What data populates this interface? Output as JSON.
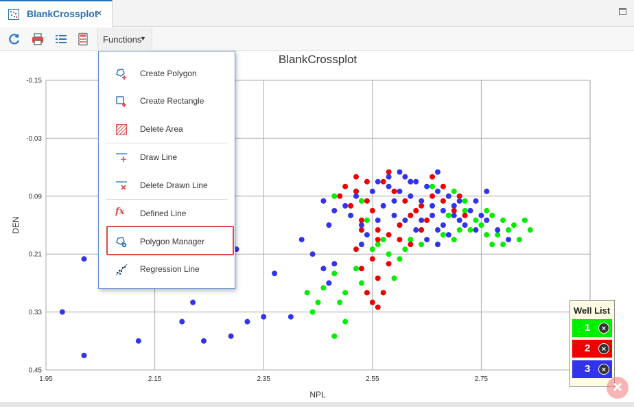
{
  "tab": {
    "title": "BlankCrossplot",
    "close_glyph": "×"
  },
  "toolbar": {
    "icons": [
      "refresh-icon",
      "print-icon",
      "list-icon",
      "calculator-icon"
    ],
    "functions_label": "Functions",
    "functions_caret": "▼"
  },
  "menu": {
    "items": [
      {
        "label": "Create Polygon",
        "icon": "create-polygon-icon"
      },
      {
        "label": "Create Rectangle",
        "icon": "create-rectangle-icon"
      },
      {
        "label": "Delete Area",
        "icon": "delete-area-icon"
      },
      {
        "label": "Draw Line",
        "icon": "draw-line-icon"
      },
      {
        "label": "Delete Drawn Line",
        "icon": "delete-drawn-line-icon"
      },
      {
        "label": "Defined Line",
        "icon": "defined-line-icon",
        "icon_text": "fx"
      },
      {
        "label": "Polygon Manager",
        "icon": "polygon-manager-icon",
        "highlighted": true
      },
      {
        "label": "Regression Line",
        "icon": "regression-line-icon"
      }
    ]
  },
  "well_list": {
    "title": "Well List",
    "wells": [
      {
        "label": "1",
        "color": "#00ee00"
      },
      {
        "label": "2",
        "color": "#ee0000"
      },
      {
        "label": "3",
        "color": "#3333ee"
      }
    ],
    "remove_glyph": "×"
  },
  "floating_close": "×",
  "chart_data": {
    "type": "scatter",
    "title": "BlankCrossplot",
    "xlabel": "NPL",
    "ylabel": "DEN",
    "xlim": [
      1.95,
      2.95
    ],
    "ylim": [
      -0.15,
      0.45
    ],
    "y_inverted": true,
    "grid": true,
    "xticks": [
      "1.95",
      "2.15",
      "2.35",
      "2.55",
      "2.75"
    ],
    "yticks": [
      "-0.15",
      "-0.03",
      "0.09",
      "0.21",
      "0.33",
      "0.45"
    ],
    "series": [
      {
        "name": "1",
        "color": "#00ee00",
        "points": [
          [
            2.44,
            0.33
          ],
          [
            2.45,
            0.31
          ],
          [
            2.43,
            0.29
          ],
          [
            2.47,
            0.27
          ],
          [
            2.48,
            0.25
          ],
          [
            2.49,
            0.31
          ],
          [
            2.5,
            0.35
          ],
          [
            2.48,
            0.38
          ],
          [
            2.52,
            0.24
          ],
          [
            2.55,
            0.2
          ],
          [
            2.57,
            0.18
          ],
          [
            2.6,
            0.15
          ],
          [
            2.62,
            0.18
          ],
          [
            2.67,
            0.19
          ],
          [
            2.7,
            0.18
          ],
          [
            2.73,
            0.16
          ],
          [
            2.75,
            0.15
          ],
          [
            2.78,
            0.17
          ],
          [
            2.8,
            0.16
          ],
          [
            2.82,
            0.18
          ],
          [
            2.81,
            0.15
          ],
          [
            2.79,
            0.14
          ],
          [
            2.76,
            0.12
          ],
          [
            2.72,
            0.1
          ],
          [
            2.7,
            0.08
          ],
          [
            2.66,
            0.07
          ],
          [
            2.62,
            0.06
          ],
          [
            2.58,
            0.05
          ],
          [
            2.53,
            0.1
          ],
          [
            2.51,
            0.13
          ],
          [
            2.54,
            0.14
          ],
          [
            2.56,
            0.19
          ],
          [
            2.58,
            0.21
          ],
          [
            2.61,
            0.2
          ],
          [
            2.64,
            0.19
          ],
          [
            2.68,
            0.17
          ],
          [
            2.71,
            0.16
          ],
          [
            2.74,
            0.14
          ],
          [
            2.77,
            0.13
          ],
          [
            2.59,
            0.26
          ],
          [
            2.48,
            0.09
          ],
          [
            2.52,
            0.08
          ],
          [
            2.77,
            0.19
          ],
          [
            2.83,
            0.14
          ],
          [
            2.84,
            0.16
          ],
          [
            2.46,
            0.28
          ],
          [
            2.5,
            0.29
          ],
          [
            2.53,
            0.27
          ],
          [
            2.64,
            0.16
          ],
          [
            2.69,
            0.13
          ],
          [
            2.72,
            0.12
          ],
          [
            2.76,
            0.17
          ],
          [
            2.79,
            0.19
          ],
          [
            2.6,
            0.22
          ]
        ]
      },
      {
        "name": "2",
        "color": "#ee0000",
        "points": [
          [
            2.5,
            0.07
          ],
          [
            2.52,
            0.08
          ],
          [
            2.54,
            0.1
          ],
          [
            2.55,
            0.12
          ],
          [
            2.53,
            0.14
          ],
          [
            2.56,
            0.16
          ],
          [
            2.58,
            0.17
          ],
          [
            2.6,
            0.15
          ],
          [
            2.62,
            0.13
          ],
          [
            2.64,
            0.11
          ],
          [
            2.66,
            0.09
          ],
          [
            2.68,
            0.1
          ],
          [
            2.7,
            0.12
          ],
          [
            2.57,
            0.06
          ],
          [
            2.59,
            0.08
          ],
          [
            2.61,
            0.1
          ],
          [
            2.63,
            0.12
          ],
          [
            2.65,
            0.14
          ],
          [
            2.55,
            0.22
          ],
          [
            2.56,
            0.26
          ],
          [
            2.57,
            0.29
          ],
          [
            2.55,
            0.31
          ],
          [
            2.56,
            0.32
          ],
          [
            2.54,
            0.29
          ],
          [
            2.53,
            0.24
          ],
          [
            2.58,
            0.23
          ],
          [
            2.51,
            0.11
          ],
          [
            2.49,
            0.09
          ],
          [
            2.52,
            0.05
          ],
          [
            2.54,
            0.06
          ],
          [
            2.58,
            0.04
          ],
          [
            2.62,
            0.06
          ],
          [
            2.66,
            0.05
          ],
          [
            2.68,
            0.07
          ],
          [
            2.71,
            0.09
          ],
          [
            2.72,
            0.13
          ],
          [
            2.56,
            0.18
          ],
          [
            2.6,
            0.18
          ],
          [
            2.62,
            0.19
          ],
          [
            2.64,
            0.16
          ],
          [
            2.53,
            0.16
          ],
          [
            2.52,
            0.2
          ]
        ]
      },
      {
        "name": "3",
        "color": "#3333ee",
        "points": [
          [
            1.98,
            0.33
          ],
          [
            2.02,
            0.22
          ],
          [
            2.02,
            0.42
          ],
          [
            2.12,
            0.39
          ],
          [
            2.2,
            0.35
          ],
          [
            2.22,
            0.31
          ],
          [
            2.24,
            0.39
          ],
          [
            2.29,
            0.38
          ],
          [
            2.3,
            0.2
          ],
          [
            2.32,
            0.35
          ],
          [
            2.35,
            0.34
          ],
          [
            2.37,
            0.25
          ],
          [
            2.4,
            0.34
          ],
          [
            2.42,
            0.18
          ],
          [
            2.44,
            0.21
          ],
          [
            2.46,
            0.24
          ],
          [
            2.47,
            0.27
          ],
          [
            2.48,
            0.23
          ],
          [
            2.5,
            0.11
          ],
          [
            2.51,
            0.13
          ],
          [
            2.53,
            0.15
          ],
          [
            2.54,
            0.17
          ],
          [
            2.56,
            0.06
          ],
          [
            2.58,
            0.07
          ],
          [
            2.6,
            0.08
          ],
          [
            2.62,
            0.09
          ],
          [
            2.64,
            0.1
          ],
          [
            2.66,
            0.11
          ],
          [
            2.68,
            0.12
          ],
          [
            2.7,
            0.13
          ],
          [
            2.72,
            0.15
          ],
          [
            2.74,
            0.16
          ],
          [
            2.76,
            0.14
          ],
          [
            2.78,
            0.16
          ],
          [
            2.8,
            0.18
          ],
          [
            2.61,
            0.05
          ],
          [
            2.63,
            0.06
          ],
          [
            2.65,
            0.07
          ],
          [
            2.67,
            0.08
          ],
          [
            2.69,
            0.09
          ],
          [
            2.71,
            0.1
          ],
          [
            2.57,
            0.11
          ],
          [
            2.59,
            0.13
          ],
          [
            2.61,
            0.14
          ],
          [
            2.63,
            0.16
          ],
          [
            2.65,
            0.18
          ],
          [
            2.67,
            0.19
          ],
          [
            2.69,
            0.17
          ],
          [
            2.46,
            0.1
          ],
          [
            2.48,
            0.12
          ],
          [
            2.52,
            0.09
          ],
          [
            2.55,
            0.08
          ],
          [
            2.58,
            0.05
          ],
          [
            2.6,
            0.04
          ],
          [
            2.62,
            0.06
          ],
          [
            2.66,
            0.13
          ],
          [
            2.68,
            0.15
          ],
          [
            2.7,
            0.11
          ],
          [
            2.73,
            0.12
          ],
          [
            2.75,
            0.13
          ],
          [
            2.47,
            0.15
          ],
          [
            2.53,
            0.19
          ],
          [
            2.56,
            0.14
          ],
          [
            2.59,
            0.1
          ],
          [
            2.64,
            0.14
          ],
          [
            2.67,
            0.16
          ],
          [
            2.71,
            0.14
          ],
          [
            2.74,
            0.1
          ],
          [
            2.76,
            0.08
          ],
          [
            2.67,
            0.04
          ]
        ]
      }
    ]
  }
}
